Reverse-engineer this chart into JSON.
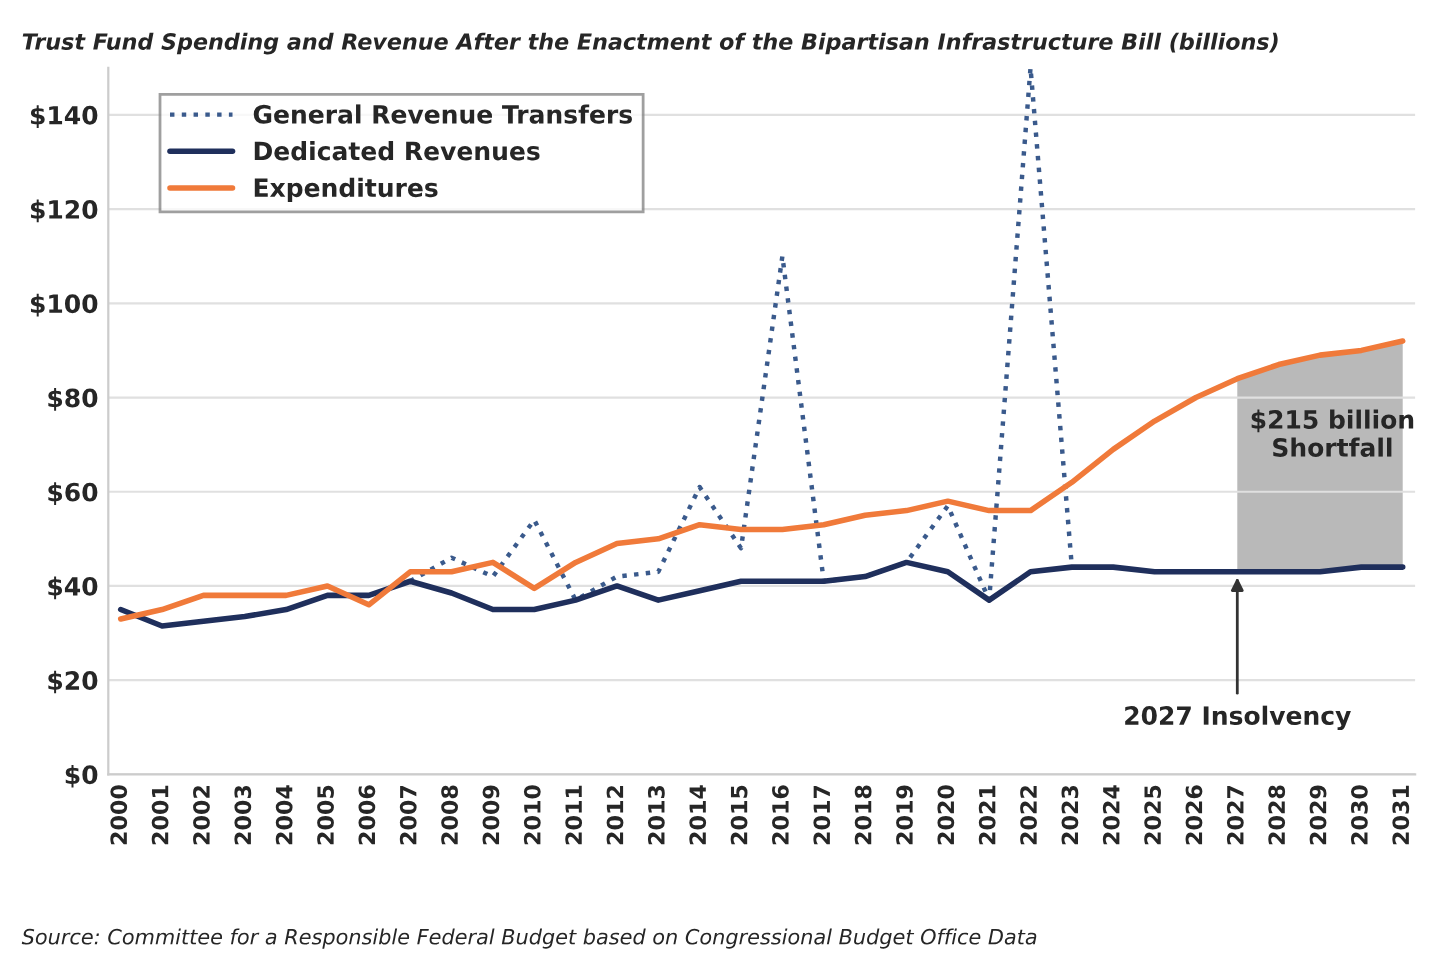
{
  "chart_data": {
    "type": "line",
    "title": "Trust Fund Spending and Revenue After the Enactment of the Bipartisan Infrastructure Bill (billions)",
    "categories": [
      "2000",
      "2001",
      "2002",
      "2003",
      "2004",
      "2005",
      "2006",
      "2007",
      "2008",
      "2009",
      "2010",
      "2011",
      "2012",
      "2013",
      "2014",
      "2015",
      "2016",
      "2017",
      "2018",
      "2019",
      "2020",
      "2021",
      "2022",
      "2023",
      "2024",
      "2025",
      "2026",
      "2027",
      "2028",
      "2029",
      "2030",
      "2031"
    ],
    "series": [
      {
        "name": "General Revenue Transfers",
        "color": "#3a5a8c",
        "line_style": "dotted",
        "values": [
          null,
          null,
          null,
          null,
          null,
          null,
          null,
          41,
          46,
          42,
          54,
          37,
          42,
          43,
          61,
          48,
          110,
          41,
          42,
          45,
          57,
          37,
          150,
          44,
          null,
          null,
          null,
          null,
          null,
          null,
          null,
          null
        ]
      },
      {
        "name": "Dedicated Revenues",
        "color": "#1f2f5c",
        "line_style": "solid",
        "values": [
          35,
          31.5,
          32.5,
          33.5,
          35,
          38,
          38,
          41,
          38.5,
          35,
          35,
          37,
          40,
          37,
          39,
          41,
          41,
          41,
          42,
          45,
          43,
          37,
          43,
          44,
          44,
          43,
          43,
          43,
          43,
          43,
          44,
          44
        ]
      },
      {
        "name": "Expenditures",
        "color": "#f07a3a",
        "line_style": "solid",
        "values": [
          33,
          35,
          38,
          38,
          38,
          40,
          36,
          43,
          43,
          45,
          39.5,
          45,
          49,
          50,
          53,
          52,
          52,
          53,
          55,
          56,
          58,
          56,
          56,
          62,
          69,
          75,
          80,
          84,
          87,
          89,
          90,
          92
        ]
      }
    ],
    "ylim": [
      0,
      150
    ],
    "yticks": [
      {
        "value": 0,
        "label": "$0"
      },
      {
        "value": 20,
        "label": "$20"
      },
      {
        "value": 40,
        "label": "$40"
      },
      {
        "value": 60,
        "label": "$60"
      },
      {
        "value": 80,
        "label": "$80"
      },
      {
        "value": 100,
        "label": "$100"
      },
      {
        "value": 120,
        "label": "$120"
      },
      {
        "value": 140,
        "label": "$140"
      }
    ],
    "bands": [
      {
        "axis": "x",
        "from": "2027",
        "to": "2031",
        "label": "$215 billion\nShortfall",
        "color": "#a8a8a8"
      }
    ],
    "annotations": [
      {
        "text": "2027 Insolvency",
        "x": "2027",
        "y": 43
      },
      "Source: Committee for a Responsible Federal Budget based on Congressional Budget Office Data"
    ],
    "grid": "y",
    "legend": "top left"
  }
}
